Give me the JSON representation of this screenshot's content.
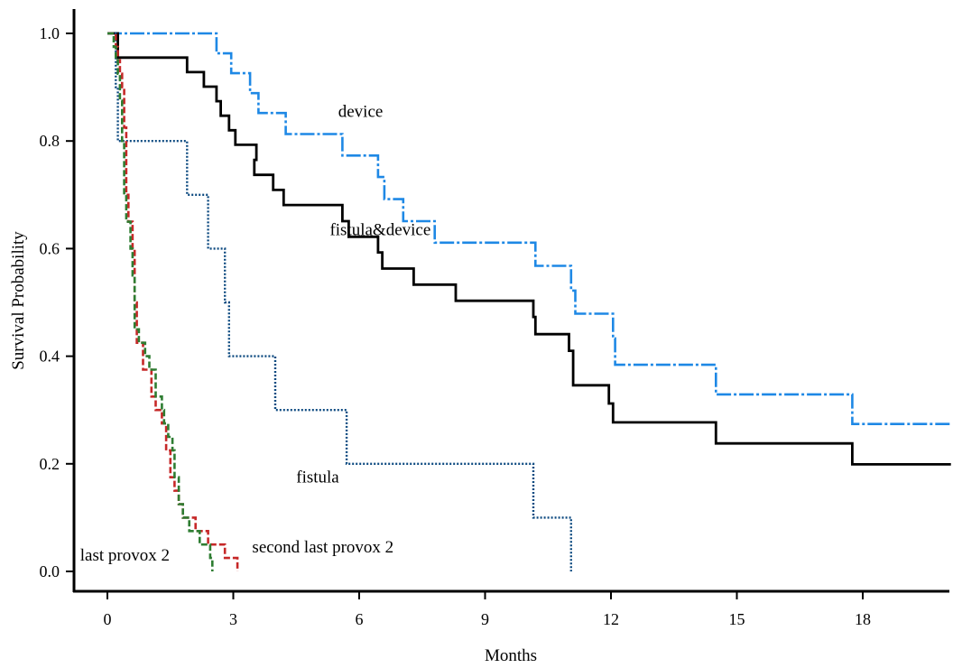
{
  "chart_data": {
    "type": "line",
    "subtype": "kaplan-meier step survival curves",
    "title": "",
    "xlabel": "Months",
    "ylabel": "Survival Probability",
    "xlim": [
      -1,
      22.5
    ],
    "ylim": [
      -0.04,
      1.05
    ],
    "x_ticks": [
      0,
      3,
      6,
      9,
      12,
      15,
      18
    ],
    "y_ticks": [
      0.0,
      0.2,
      0.4,
      0.6,
      0.8,
      1.0
    ],
    "x_tick_labels": [
      "0",
      "3",
      "6",
      "9",
      "12",
      "15",
      "18"
    ],
    "y_tick_labels": [
      "0.0",
      "0.2",
      "0.4",
      "0.6",
      "0.8",
      "1.0"
    ],
    "grid": false,
    "legend": "none (direct labels on curves)",
    "series": [
      {
        "label_text": "device",
        "label_at": [
          5.5,
          0.845
        ],
        "color": "#1e88e5",
        "style": "dashed",
        "points": [
          [
            0.0,
            1.0
          ],
          [
            2.6,
            1.0
          ],
          [
            2.6,
            0.963
          ],
          [
            2.95,
            0.963
          ],
          [
            2.95,
            0.926
          ],
          [
            3.4,
            0.926
          ],
          [
            3.4,
            0.889
          ],
          [
            3.6,
            0.889
          ],
          [
            3.6,
            0.852
          ],
          [
            4.25,
            0.852
          ],
          [
            4.25,
            0.813
          ],
          [
            5.6,
            0.813
          ],
          [
            5.6,
            0.773
          ],
          [
            6.45,
            0.773
          ],
          [
            6.45,
            0.733
          ],
          [
            6.6,
            0.733
          ],
          [
            6.6,
            0.692
          ],
          [
            7.05,
            0.692
          ],
          [
            7.05,
            0.651
          ],
          [
            7.8,
            0.651
          ],
          [
            7.8,
            0.611
          ],
          [
            10.2,
            0.611
          ],
          [
            10.2,
            0.568
          ],
          [
            11.05,
            0.568
          ],
          [
            11.05,
            0.522
          ],
          [
            11.15,
            0.522
          ],
          [
            11.15,
            0.479
          ],
          [
            12.05,
            0.479
          ],
          [
            12.05,
            0.433
          ],
          [
            12.1,
            0.433
          ],
          [
            12.1,
            0.384
          ],
          [
            14.5,
            0.384
          ],
          [
            14.5,
            0.329
          ],
          [
            17.75,
            0.329
          ],
          [
            17.75,
            0.274
          ],
          [
            20.1,
            0.274
          ]
        ]
      },
      {
        "label_text": "",
        "color": "#000000",
        "style": "solid",
        "points": [
          [
            0.0,
            1.0
          ],
          [
            0.25,
            1.0
          ],
          [
            0.25,
            0.955
          ],
          [
            1.9,
            0.955
          ],
          [
            1.9,
            0.928
          ],
          [
            2.3,
            0.928
          ],
          [
            2.3,
            0.901
          ],
          [
            2.6,
            0.901
          ],
          [
            2.6,
            0.874
          ],
          [
            2.7,
            0.874
          ],
          [
            2.7,
            0.847
          ],
          [
            2.9,
            0.847
          ],
          [
            2.9,
            0.82
          ],
          [
            3.05,
            0.82
          ],
          [
            3.05,
            0.793
          ],
          [
            3.55,
            0.793
          ],
          [
            3.55,
            0.765
          ],
          [
            3.5,
            0.765
          ],
          [
            3.5,
            0.737
          ],
          [
            3.95,
            0.737
          ],
          [
            3.95,
            0.709
          ],
          [
            4.2,
            0.709
          ],
          [
            4.2,
            0.681
          ],
          [
            5.6,
            0.681
          ],
          [
            5.6,
            0.651
          ],
          [
            5.75,
            0.651
          ],
          [
            5.75,
            0.622
          ],
          [
            6.45,
            0.622
          ],
          [
            6.45,
            0.593
          ],
          [
            6.55,
            0.593
          ],
          [
            6.55,
            0.563
          ],
          [
            7.3,
            0.563
          ],
          [
            7.3,
            0.533
          ],
          [
            8.3,
            0.533
          ],
          [
            8.3,
            0.503
          ],
          [
            10.15,
            0.503
          ],
          [
            10.15,
            0.473
          ],
          [
            10.2,
            0.473
          ],
          [
            10.2,
            0.441
          ],
          [
            11.0,
            0.441
          ],
          [
            11.0,
            0.41
          ],
          [
            11.1,
            0.41
          ],
          [
            11.1,
            0.346
          ],
          [
            11.95,
            0.346
          ],
          [
            11.95,
            0.312
          ],
          [
            12.05,
            0.312
          ],
          [
            12.05,
            0.277
          ],
          [
            14.5,
            0.277
          ],
          [
            14.5,
            0.238
          ],
          [
            17.75,
            0.238
          ],
          [
            17.75,
            0.199
          ],
          [
            20.1,
            0.199
          ]
        ]
      },
      {
        "label_text": "fistula&device",
        "label_at": [
          5.3,
          0.625
        ],
        "color": "#000000",
        "style": "none"
      },
      {
        "label_text": "fistula",
        "label_at": [
          4.5,
          0.165
        ],
        "color": "#0d4a80",
        "style": "dotted",
        "points": [
          [
            0.0,
            1.0
          ],
          [
            0.2,
            1.0
          ],
          [
            0.2,
            0.9
          ],
          [
            0.25,
            0.9
          ],
          [
            0.25,
            0.8
          ],
          [
            1.9,
            0.8
          ],
          [
            1.9,
            0.7
          ],
          [
            2.4,
            0.7
          ],
          [
            2.4,
            0.6
          ],
          [
            2.8,
            0.6
          ],
          [
            2.8,
            0.5
          ],
          [
            2.9,
            0.5
          ],
          [
            2.9,
            0.4
          ],
          [
            4.0,
            0.4
          ],
          [
            4.0,
            0.3
          ],
          [
            5.7,
            0.3
          ],
          [
            5.7,
            0.2
          ],
          [
            10.15,
            0.2
          ],
          [
            10.15,
            0.1
          ],
          [
            11.05,
            0.1
          ],
          [
            11.05,
            0.0
          ]
        ]
      },
      {
        "label_text": "second last provox 2",
        "label_at": [
          3.45,
          0.035
        ],
        "color": "#c62828",
        "style": "dashed",
        "points": [
          [
            0.0,
            1.0
          ],
          [
            0.2,
            1.0
          ],
          [
            0.2,
            0.975
          ],
          [
            0.25,
            0.975
          ],
          [
            0.25,
            0.95
          ],
          [
            0.3,
            0.95
          ],
          [
            0.3,
            0.925
          ],
          [
            0.35,
            0.925
          ],
          [
            0.35,
            0.9
          ],
          [
            0.4,
            0.9
          ],
          [
            0.4,
            0.825
          ],
          [
            0.45,
            0.825
          ],
          [
            0.45,
            0.7
          ],
          [
            0.5,
            0.7
          ],
          [
            0.5,
            0.65
          ],
          [
            0.6,
            0.65
          ],
          [
            0.6,
            0.6
          ],
          [
            0.65,
            0.6
          ],
          [
            0.65,
            0.5
          ],
          [
            0.7,
            0.5
          ],
          [
            0.7,
            0.425
          ],
          [
            0.85,
            0.425
          ],
          [
            0.85,
            0.375
          ],
          [
            1.05,
            0.375
          ],
          [
            1.05,
            0.325
          ],
          [
            1.15,
            0.325
          ],
          [
            1.15,
            0.3
          ],
          [
            1.3,
            0.3
          ],
          [
            1.3,
            0.275
          ],
          [
            1.4,
            0.275
          ],
          [
            1.4,
            0.225
          ],
          [
            1.5,
            0.225
          ],
          [
            1.5,
            0.175
          ],
          [
            1.6,
            0.175
          ],
          [
            1.6,
            0.15
          ],
          [
            1.7,
            0.15
          ],
          [
            1.7,
            0.125
          ],
          [
            1.8,
            0.125
          ],
          [
            1.8,
            0.1
          ],
          [
            2.1,
            0.1
          ],
          [
            2.1,
            0.075
          ],
          [
            2.4,
            0.075
          ],
          [
            2.4,
            0.05
          ],
          [
            2.8,
            0.05
          ],
          [
            2.8,
            0.025
          ],
          [
            3.1,
            0.025
          ],
          [
            3.1,
            0.0
          ]
        ]
      },
      {
        "label_text": "last provox 2",
        "label_at": [
          -0.65,
          0.02
        ],
        "color": "#2e7d32",
        "style": "dashed",
        "points": [
          [
            0.0,
            1.0
          ],
          [
            0.15,
            1.0
          ],
          [
            0.15,
            0.975
          ],
          [
            0.2,
            0.975
          ],
          [
            0.2,
            0.95
          ],
          [
            0.25,
            0.95
          ],
          [
            0.25,
            0.925
          ],
          [
            0.3,
            0.925
          ],
          [
            0.3,
            0.875
          ],
          [
            0.35,
            0.875
          ],
          [
            0.35,
            0.8
          ],
          [
            0.4,
            0.8
          ],
          [
            0.4,
            0.7
          ],
          [
            0.45,
            0.7
          ],
          [
            0.45,
            0.65
          ],
          [
            0.55,
            0.65
          ],
          [
            0.55,
            0.6
          ],
          [
            0.6,
            0.6
          ],
          [
            0.6,
            0.55
          ],
          [
            0.65,
            0.55
          ],
          [
            0.65,
            0.45
          ],
          [
            0.75,
            0.45
          ],
          [
            0.75,
            0.425
          ],
          [
            0.9,
            0.425
          ],
          [
            0.9,
            0.4
          ],
          [
            1.0,
            0.4
          ],
          [
            1.0,
            0.375
          ],
          [
            1.15,
            0.375
          ],
          [
            1.15,
            0.325
          ],
          [
            1.3,
            0.325
          ],
          [
            1.3,
            0.3
          ],
          [
            1.35,
            0.3
          ],
          [
            1.35,
            0.275
          ],
          [
            1.45,
            0.275
          ],
          [
            1.45,
            0.25
          ],
          [
            1.55,
            0.25
          ],
          [
            1.55,
            0.225
          ],
          [
            1.6,
            0.225
          ],
          [
            1.6,
            0.175
          ],
          [
            1.7,
            0.175
          ],
          [
            1.7,
            0.125
          ],
          [
            1.8,
            0.125
          ],
          [
            1.8,
            0.1
          ],
          [
            1.95,
            0.1
          ],
          [
            1.95,
            0.075
          ],
          [
            2.2,
            0.075
          ],
          [
            2.2,
            0.05
          ],
          [
            2.45,
            0.05
          ],
          [
            2.45,
            0.025
          ],
          [
            2.5,
            0.025
          ],
          [
            2.5,
            0.0
          ]
        ]
      }
    ]
  }
}
